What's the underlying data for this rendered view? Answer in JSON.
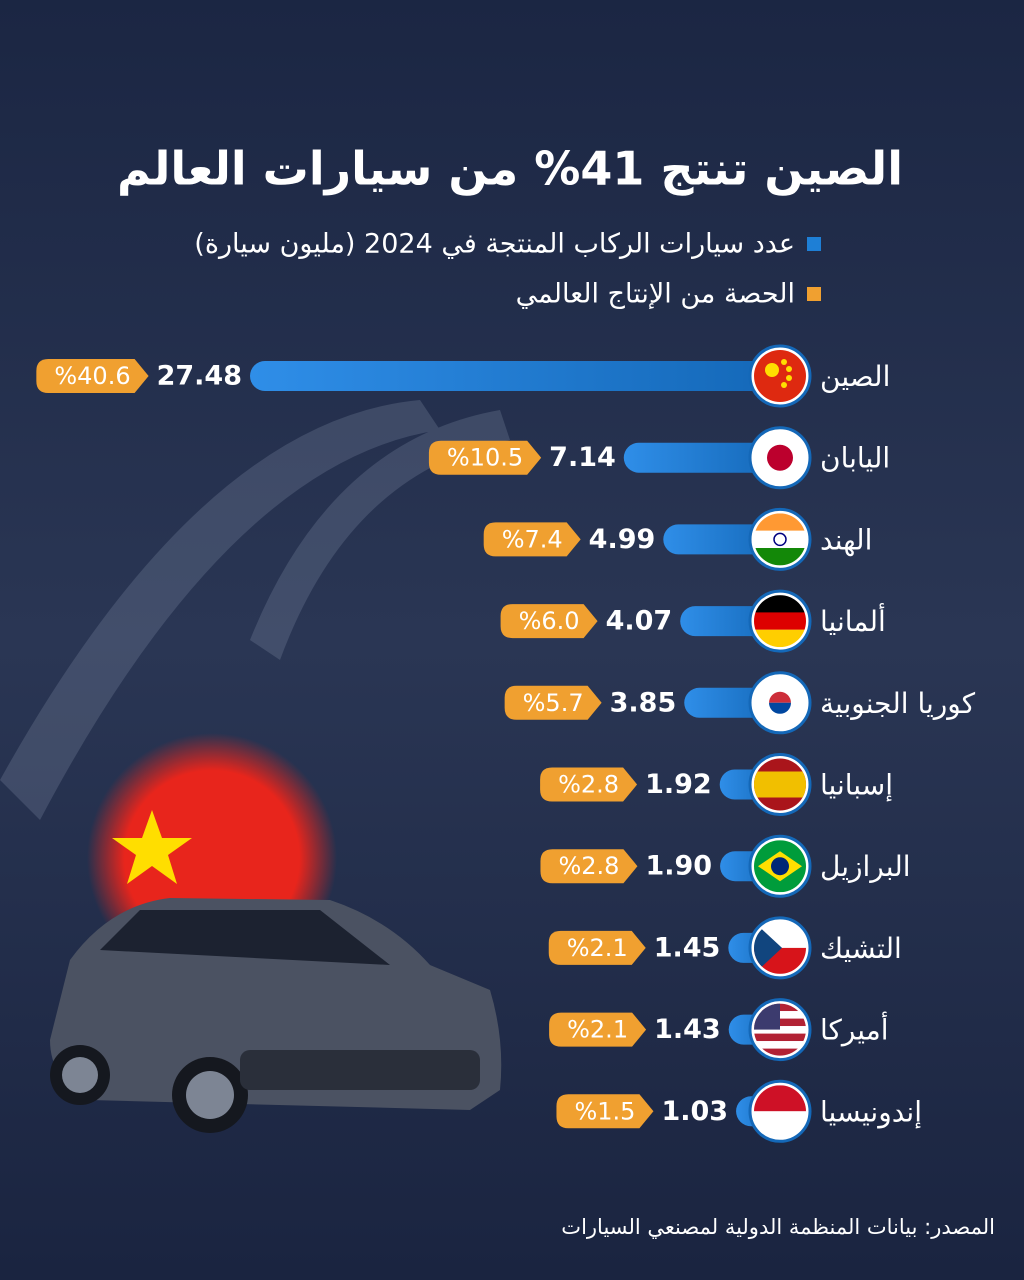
{
  "chart_data": {
    "type": "bar",
    "title": "الصين تنتج 41% من سيارات العالم",
    "categories": [
      "الصين",
      "اليابان",
      "الهند",
      "ألمانيا",
      "كوريا الجنوبية",
      "إسبانيا",
      "البرازيل",
      "التشيك",
      "أميركا",
      "إندونيسيا"
    ],
    "series": [
      {
        "name": "عدد سيارات الركاب المنتجة في 2024 (مليون سيارة)",
        "color": "#1e7fd6",
        "values": [
          27.48,
          7.14,
          4.99,
          4.07,
          3.85,
          1.92,
          1.9,
          1.45,
          1.43,
          1.03
        ],
        "value_labels": [
          "27.48",
          "7.14",
          "4.99",
          "4.07",
          "3.85",
          "1.92",
          "1.90",
          "1.45",
          "1.43",
          "1.03"
        ]
      },
      {
        "name": "الحصة من الإنتاج العالمي",
        "color": "#f0a030",
        "values": [
          40.6,
          10.5,
          7.4,
          6.0,
          5.7,
          2.8,
          2.8,
          2.1,
          2.1,
          1.5
        ],
        "value_labels": [
          "%40.6",
          "%10.5",
          "%7.4",
          "%6.0",
          "%5.7",
          "%2.8",
          "%2.8",
          "%2.1",
          "%2.1",
          "%1.5"
        ]
      }
    ],
    "source": "المصدر: بيانات المنظمة الدولية لمصنعي السيارات"
  }
}
